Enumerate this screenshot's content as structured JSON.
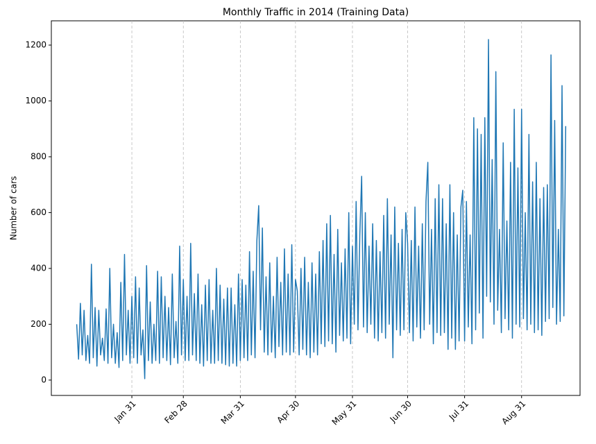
{
  "chart_data": {
    "type": "line",
    "title": "Monthly Traffic in 2014 (Training Data)",
    "y_label": "Number of cars",
    "xlim": [
      -12.8,
      274.8
    ],
    "ylim": [
      -55,
      1287
    ],
    "xticks": [
      {
        "value": 31,
        "label": "Jan 31"
      },
      {
        "value": 59,
        "label": "Feb 28"
      },
      {
        "value": 90,
        "label": "Mar 31"
      },
      {
        "value": 120,
        "label": "Apr 30"
      },
      {
        "value": 151,
        "label": "May 31"
      },
      {
        "value": 181,
        "label": "Jun 30"
      },
      {
        "value": 212,
        "label": "Jul 31"
      },
      {
        "value": 243,
        "label": "Aug 31"
      }
    ],
    "yticks": [
      0,
      200,
      400,
      600,
      800,
      1000,
      1200
    ],
    "grid": "x",
    "x": [
      1,
      2,
      3,
      4,
      5,
      6,
      7,
      8,
      9,
      10,
      11,
      12,
      13,
      14,
      15,
      16,
      17,
      18,
      19,
      20,
      21,
      22,
      23,
      24,
      25,
      26,
      27,
      28,
      29,
      30,
      31,
      32,
      33,
      34,
      35,
      36,
      37,
      38,
      39,
      40,
      41,
      42,
      43,
      44,
      45,
      46,
      47,
      48,
      49,
      50,
      51,
      52,
      53,
      54,
      55,
      56,
      57,
      58,
      59,
      60,
      61,
      62,
      63,
      64,
      65,
      66,
      67,
      68,
      69,
      70,
      71,
      72,
      73,
      74,
      75,
      76,
      77,
      78,
      79,
      80,
      81,
      82,
      83,
      84,
      85,
      86,
      87,
      88,
      89,
      90,
      91,
      92,
      93,
      94,
      95,
      96,
      97,
      98,
      99,
      100,
      101,
      102,
      103,
      104,
      105,
      106,
      107,
      108,
      109,
      110,
      111,
      112,
      113,
      114,
      115,
      116,
      117,
      118,
      119,
      120,
      121,
      122,
      123,
      124,
      125,
      126,
      127,
      128,
      129,
      130,
      131,
      132,
      133,
      134,
      135,
      136,
      137,
      138,
      139,
      140,
      141,
      142,
      143,
      144,
      145,
      146,
      147,
      148,
      149,
      150,
      151,
      152,
      153,
      154,
      155,
      156,
      157,
      158,
      159,
      160,
      161,
      162,
      163,
      164,
      165,
      166,
      167,
      168,
      169,
      170,
      171,
      172,
      173,
      174,
      175,
      176,
      177,
      178,
      179,
      180,
      181,
      182,
      183,
      184,
      185,
      186,
      187,
      188,
      189,
      190,
      191,
      192,
      193,
      194,
      195,
      196,
      197,
      198,
      199,
      200,
      201,
      202,
      203,
      204,
      205,
      206,
      207,
      208,
      209,
      210,
      211,
      212,
      213,
      214,
      215,
      216,
      217,
      218,
      219,
      220,
      221,
      222,
      223,
      224,
      225,
      226,
      227,
      228,
      229,
      230,
      231,
      232,
      233,
      234,
      235,
      236,
      237,
      238,
      239,
      240,
      241,
      242,
      243,
      244,
      245,
      246,
      247,
      248,
      249,
      250,
      251,
      252,
      253,
      254,
      255,
      256,
      257,
      258,
      259,
      260,
      261,
      262,
      263,
      264,
      265,
      266,
      267
    ],
    "series": [
      {
        "name": "Number of cars",
        "color": "#1f77b4",
        "values": [
          200,
          75,
          275,
          90,
          250,
          70,
          160,
          60,
          415,
          80,
          260,
          50,
          250,
          90,
          150,
          70,
          255,
          60,
          400,
          80,
          200,
          60,
          170,
          45,
          350,
          70,
          450,
          90,
          250,
          60,
          300,
          80,
          370,
          60,
          330,
          90,
          180,
          5,
          410,
          70,
          280,
          60,
          200,
          70,
          390,
          60,
          370,
          80,
          300,
          70,
          260,
          55,
          380,
          80,
          210,
          60,
          480,
          90,
          360,
          70,
          300,
          70,
          490,
          90,
          310,
          70,
          380,
          60,
          270,
          50,
          340,
          70,
          360,
          60,
          250,
          60,
          400,
          70,
          340,
          60,
          290,
          55,
          330,
          50,
          330,
          60,
          270,
          50,
          380,
          70,
          360,
          80,
          340,
          70,
          460,
          90,
          390,
          80,
          500,
          625,
          180,
          545,
          100,
          370,
          90,
          420,
          100,
          300,
          80,
          440,
          120,
          350,
          90,
          470,
          100,
          380,
          90,
          485,
          100,
          360,
          320,
          90,
          400,
          110,
          440,
          90,
          350,
          80,
          420,
          100,
          380,
          90,
          460,
          130,
          500,
          120,
          560,
          140,
          590,
          130,
          450,
          100,
          540,
          160,
          420,
          140,
          470,
          150,
          600,
          130,
          480,
          200,
          640,
          180,
          520,
          730,
          190,
          600,
          170,
          480,
          200,
          560,
          150,
          500,
          140,
          460,
          170,
          590,
          150,
          650,
          200,
          520,
          80,
          620,
          180,
          490,
          160,
          540,
          180,
          600,
          490,
          170,
          500,
          140,
          620,
          190,
          480,
          150,
          560,
          180,
          640,
          780,
          200,
          540,
          130,
          650,
          170,
          700,
          160,
          650,
          170,
          560,
          110,
          700,
          150,
          600,
          110,
          520,
          140,
          620,
          680,
          140,
          640,
          190,
          520,
          130,
          940,
          180,
          900,
          240,
          880,
          150,
          940,
          300,
          1220,
          280,
          790,
          200,
          1105,
          250,
          540,
          170,
          850,
          220,
          570,
          180,
          780,
          150,
          970,
          200,
          760,
          190,
          970,
          220,
          600,
          180,
          880,
          200,
          710,
          170,
          780,
          180,
          650,
          160,
          690,
          210,
          700,
          220,
          1165,
          260,
          930,
          200,
          540,
          210,
          1055,
          230,
          910
        ]
      }
    ]
  }
}
